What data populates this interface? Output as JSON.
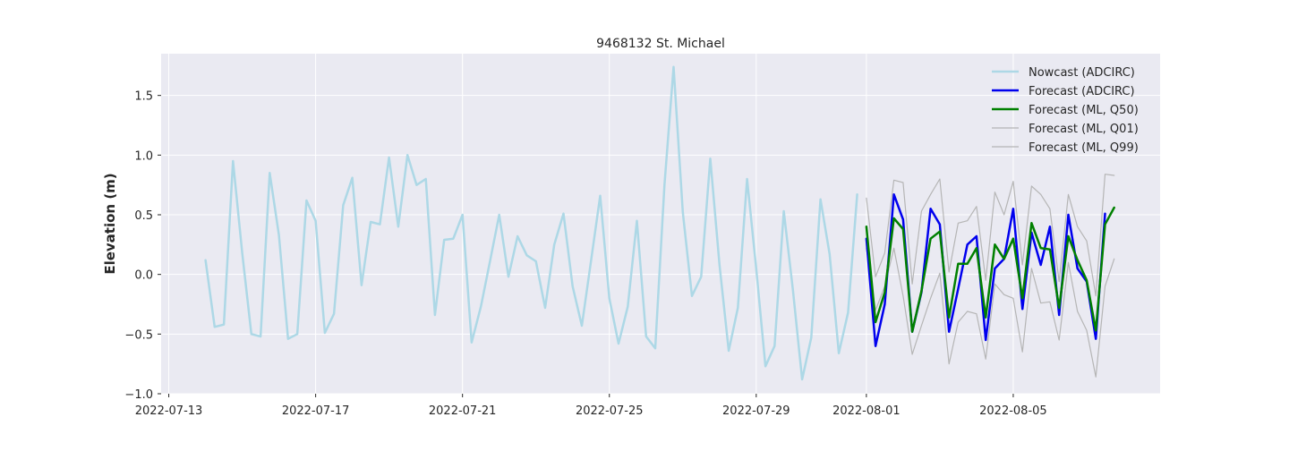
{
  "chart_data": {
    "type": "line",
    "title": "9468132 St. Michael",
    "xlabel": "",
    "ylabel": "Elevation (m)",
    "x_axis_type": "datetime",
    "xlim": [
      "2022-07-12T19:00",
      "2022-08-09T00:00"
    ],
    "ylim": [
      -1.0,
      1.85
    ],
    "x_ticks": [
      "2022-07-13",
      "2022-07-17",
      "2022-07-21",
      "2022-07-25",
      "2022-07-29",
      "2022-08-01",
      "2022-08-05"
    ],
    "y_ticks": [
      -1.0,
      -0.5,
      0.0,
      0.5,
      1.0,
      1.5
    ],
    "y_tick_labels": [
      "−1.0",
      "−0.5",
      "0.0",
      "0.5",
      "1.0",
      "1.5"
    ],
    "grid": true,
    "legend_position": "top-right",
    "series": [
      {
        "name": "Nowcast (ADCIRC)",
        "color": "#add8e6",
        "line_width": 2.5,
        "points": [
          [
            "2022-07-14T00:00",
            0.12
          ],
          [
            "2022-07-14T06:00",
            -0.44
          ],
          [
            "2022-07-14T12:00",
            -0.42
          ],
          [
            "2022-07-14T18:00",
            0.95
          ],
          [
            "2022-07-15T00:00",
            0.18
          ],
          [
            "2022-07-15T06:00",
            -0.5
          ],
          [
            "2022-07-15T12:00",
            -0.52
          ],
          [
            "2022-07-15T18:00",
            0.85
          ],
          [
            "2022-07-16T00:00",
            0.33
          ],
          [
            "2022-07-16T06:00",
            -0.54
          ],
          [
            "2022-07-16T12:00",
            -0.5
          ],
          [
            "2022-07-16T18:00",
            0.62
          ],
          [
            "2022-07-17T00:00",
            0.45
          ],
          [
            "2022-07-17T06:00",
            -0.49
          ],
          [
            "2022-07-17T12:00",
            -0.33
          ],
          [
            "2022-07-17T18:00",
            0.58
          ],
          [
            "2022-07-18T00:00",
            0.81
          ],
          [
            "2022-07-18T06:00",
            -0.09
          ],
          [
            "2022-07-18T12:00",
            0.44
          ],
          [
            "2022-07-18T18:00",
            0.42
          ],
          [
            "2022-07-19T00:00",
            0.98
          ],
          [
            "2022-07-19T06:00",
            0.4
          ],
          [
            "2022-07-19T12:00",
            1.0
          ],
          [
            "2022-07-19T18:00",
            0.75
          ],
          [
            "2022-07-20T00:00",
            0.8
          ],
          [
            "2022-07-20T06:00",
            -0.34
          ],
          [
            "2022-07-20T12:00",
            0.29
          ],
          [
            "2022-07-20T18:00",
            0.3
          ],
          [
            "2022-07-21T00:00",
            0.5
          ],
          [
            "2022-07-21T06:00",
            -0.57
          ],
          [
            "2022-07-21T12:00",
            -0.27
          ],
          [
            "2022-07-21T18:00",
            0.11
          ],
          [
            "2022-07-22T00:00",
            0.5
          ],
          [
            "2022-07-22T06:00",
            -0.02
          ],
          [
            "2022-07-22T12:00",
            0.32
          ],
          [
            "2022-07-22T18:00",
            0.16
          ],
          [
            "2022-07-23T00:00",
            0.11
          ],
          [
            "2022-07-23T06:00",
            -0.28
          ],
          [
            "2022-07-23T12:00",
            0.25
          ],
          [
            "2022-07-23T18:00",
            0.51
          ],
          [
            "2022-07-24T00:00",
            -0.1
          ],
          [
            "2022-07-24T06:00",
            -0.43
          ],
          [
            "2022-07-24T12:00",
            0.11
          ],
          [
            "2022-07-24T18:00",
            0.66
          ],
          [
            "2022-07-25T00:00",
            -0.2
          ],
          [
            "2022-07-25T06:00",
            -0.58
          ],
          [
            "2022-07-25T12:00",
            -0.27
          ],
          [
            "2022-07-25T18:00",
            0.45
          ],
          [
            "2022-07-26T00:00",
            -0.52
          ],
          [
            "2022-07-26T06:00",
            -0.62
          ],
          [
            "2022-07-26T12:00",
            0.75
          ],
          [
            "2022-07-26T18:00",
            1.74
          ],
          [
            "2022-07-27T00:00",
            0.52
          ],
          [
            "2022-07-27T06:00",
            -0.18
          ],
          [
            "2022-07-27T12:00",
            -0.02
          ],
          [
            "2022-07-27T18:00",
            0.97
          ],
          [
            "2022-07-28T00:00",
            0.08
          ],
          [
            "2022-07-28T06:00",
            -0.64
          ],
          [
            "2022-07-28T12:00",
            -0.28
          ],
          [
            "2022-07-28T18:00",
            0.8
          ],
          [
            "2022-07-29T00:00",
            0.05
          ],
          [
            "2022-07-29T06:00",
            -0.77
          ],
          [
            "2022-07-29T12:00",
            -0.6
          ],
          [
            "2022-07-29T18:00",
            0.53
          ],
          [
            "2022-07-30T00:00",
            -0.13
          ],
          [
            "2022-07-30T06:00",
            -0.88
          ],
          [
            "2022-07-30T12:00",
            -0.53
          ],
          [
            "2022-07-30T18:00",
            0.63
          ],
          [
            "2022-07-31T00:00",
            0.17
          ],
          [
            "2022-07-31T06:00",
            -0.66
          ],
          [
            "2022-07-31T12:00",
            -0.32
          ],
          [
            "2022-07-31T18:00",
            0.67
          ]
        ]
      },
      {
        "name": "Forecast (ADCIRC)",
        "color": "#0000ee",
        "line_width": 2.5,
        "points": [
          [
            "2022-08-01T00:00",
            0.3
          ],
          [
            "2022-08-01T06:00",
            -0.6
          ],
          [
            "2022-08-01T12:00",
            -0.25
          ],
          [
            "2022-08-01T18:00",
            0.67
          ],
          [
            "2022-08-02T00:00",
            0.46
          ],
          [
            "2022-08-02T06:00",
            -0.48
          ],
          [
            "2022-08-02T12:00",
            -0.15
          ],
          [
            "2022-08-02T18:00",
            0.55
          ],
          [
            "2022-08-03T00:00",
            0.42
          ],
          [
            "2022-08-03T06:00",
            -0.48
          ],
          [
            "2022-08-03T12:00",
            -0.12
          ],
          [
            "2022-08-03T18:00",
            0.25
          ],
          [
            "2022-08-04T00:00",
            0.32
          ],
          [
            "2022-08-04T06:00",
            -0.55
          ],
          [
            "2022-08-04T12:00",
            0.05
          ],
          [
            "2022-08-04T18:00",
            0.13
          ],
          [
            "2022-08-05T00:00",
            0.55
          ],
          [
            "2022-08-05T06:00",
            -0.29
          ],
          [
            "2022-08-05T12:00",
            0.35
          ],
          [
            "2022-08-05T18:00",
            0.08
          ],
          [
            "2022-08-06T00:00",
            0.4
          ],
          [
            "2022-08-06T06:00",
            -0.34
          ],
          [
            "2022-08-06T12:00",
            0.5
          ],
          [
            "2022-08-06T18:00",
            0.05
          ],
          [
            "2022-08-07T00:00",
            -0.06
          ],
          [
            "2022-08-07T06:00",
            -0.54
          ],
          [
            "2022-08-07T12:00",
            0.51
          ]
        ]
      },
      {
        "name": "Forecast (ML, Q50)",
        "color": "#008000",
        "line_width": 2.5,
        "points": [
          [
            "2022-08-01T00:00",
            0.4
          ],
          [
            "2022-08-01T06:00",
            -0.4
          ],
          [
            "2022-08-01T12:00",
            -0.15
          ],
          [
            "2022-08-01T18:00",
            0.47
          ],
          [
            "2022-08-02T00:00",
            0.38
          ],
          [
            "2022-08-02T06:00",
            -0.48
          ],
          [
            "2022-08-02T12:00",
            -0.14
          ],
          [
            "2022-08-02T18:00",
            0.3
          ],
          [
            "2022-08-03T00:00",
            0.36
          ],
          [
            "2022-08-03T06:00",
            -0.36
          ],
          [
            "2022-08-03T12:00",
            0.09
          ],
          [
            "2022-08-03T18:00",
            0.09
          ],
          [
            "2022-08-04T00:00",
            0.22
          ],
          [
            "2022-08-04T06:00",
            -0.36
          ],
          [
            "2022-08-04T12:00",
            0.25
          ],
          [
            "2022-08-04T18:00",
            0.13
          ],
          [
            "2022-08-05T00:00",
            0.3
          ],
          [
            "2022-08-05T06:00",
            -0.2
          ],
          [
            "2022-08-05T12:00",
            0.43
          ],
          [
            "2022-08-05T18:00",
            0.22
          ],
          [
            "2022-08-06T00:00",
            0.21
          ],
          [
            "2022-08-06T06:00",
            -0.28
          ],
          [
            "2022-08-06T12:00",
            0.32
          ],
          [
            "2022-08-06T18:00",
            0.12
          ],
          [
            "2022-08-07T00:00",
            -0.05
          ],
          [
            "2022-08-07T06:00",
            -0.47
          ],
          [
            "2022-08-07T12:00",
            0.42
          ],
          [
            "2022-08-07T18:00",
            0.56
          ]
        ]
      },
      {
        "name": "Forecast (ML, Q01)",
        "color": "#b5b5b5",
        "line_width": 1.2,
        "points": [
          [
            "2022-08-01T00:00",
            0.22
          ],
          [
            "2022-08-01T06:00",
            -0.3
          ],
          [
            "2022-08-01T12:00",
            -0.1
          ],
          [
            "2022-08-01T18:00",
            0.22
          ],
          [
            "2022-08-02T00:00",
            -0.18
          ],
          [
            "2022-08-02T06:00",
            -0.67
          ],
          [
            "2022-08-02T12:00",
            -0.43
          ],
          [
            "2022-08-02T18:00",
            -0.2
          ],
          [
            "2022-08-03T00:00",
            0.01
          ],
          [
            "2022-08-03T06:00",
            -0.75
          ],
          [
            "2022-08-03T12:00",
            -0.4
          ],
          [
            "2022-08-03T18:00",
            -0.31
          ],
          [
            "2022-08-04T00:00",
            -0.33
          ],
          [
            "2022-08-04T06:00",
            -0.71
          ],
          [
            "2022-08-04T12:00",
            -0.08
          ],
          [
            "2022-08-04T18:00",
            -0.17
          ],
          [
            "2022-08-05T00:00",
            -0.2
          ],
          [
            "2022-08-05T06:00",
            -0.65
          ],
          [
            "2022-08-05T12:00",
            0.05
          ],
          [
            "2022-08-05T18:00",
            -0.24
          ],
          [
            "2022-08-06T00:00",
            -0.23
          ],
          [
            "2022-08-06T06:00",
            -0.55
          ],
          [
            "2022-08-06T12:00",
            0.1
          ],
          [
            "2022-08-06T18:00",
            -0.31
          ],
          [
            "2022-08-07T00:00",
            -0.47
          ],
          [
            "2022-08-07T06:00",
            -0.86
          ],
          [
            "2022-08-07T12:00",
            -0.1
          ],
          [
            "2022-08-07T18:00",
            0.13
          ]
        ]
      },
      {
        "name": "Forecast (ML, Q99)",
        "color": "#b5b5b5",
        "line_width": 1.2,
        "points": [
          [
            "2022-08-01T00:00",
            0.64
          ],
          [
            "2022-08-01T06:00",
            -0.02
          ],
          [
            "2022-08-01T12:00",
            0.18
          ],
          [
            "2022-08-01T18:00",
            0.79
          ],
          [
            "2022-08-02T00:00",
            0.77
          ],
          [
            "2022-08-02T06:00",
            -0.08
          ],
          [
            "2022-08-02T12:00",
            0.53
          ],
          [
            "2022-08-02T18:00",
            0.67
          ],
          [
            "2022-08-03T00:00",
            0.8
          ],
          [
            "2022-08-03T06:00",
            0.02
          ],
          [
            "2022-08-03T12:00",
            0.43
          ],
          [
            "2022-08-03T18:00",
            0.45
          ],
          [
            "2022-08-04T00:00",
            0.57
          ],
          [
            "2022-08-04T06:00",
            -0.05
          ],
          [
            "2022-08-04T12:00",
            0.69
          ],
          [
            "2022-08-04T18:00",
            0.5
          ],
          [
            "2022-08-05T00:00",
            0.78
          ],
          [
            "2022-08-05T06:00",
            0.08
          ],
          [
            "2022-08-05T12:00",
            0.74
          ],
          [
            "2022-08-05T18:00",
            0.67
          ],
          [
            "2022-08-06T00:00",
            0.55
          ],
          [
            "2022-08-06T06:00",
            -0.06
          ],
          [
            "2022-08-06T12:00",
            0.67
          ],
          [
            "2022-08-06T18:00",
            0.4
          ],
          [
            "2022-08-07T00:00",
            0.28
          ],
          [
            "2022-08-07T06:00",
            -0.18
          ],
          [
            "2022-08-07T12:00",
            0.84
          ],
          [
            "2022-08-07T18:00",
            0.83
          ]
        ]
      }
    ]
  }
}
